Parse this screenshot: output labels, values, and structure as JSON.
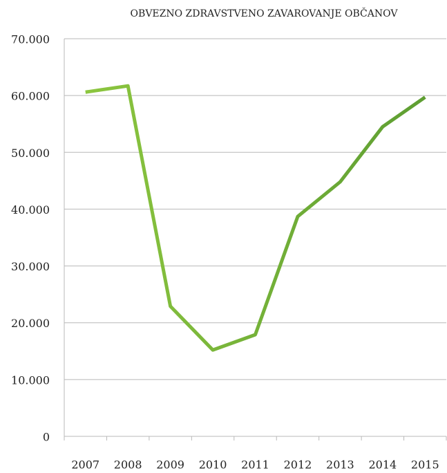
{
  "chart_data": {
    "type": "line",
    "title": "OBVEZNO ZDRAVSTVENO ZAVAROVANJE OBČANOV",
    "categories": [
      "2007",
      "2008",
      "2009",
      "2010",
      "2011",
      "2012",
      "2013",
      "2014",
      "2015"
    ],
    "series": [
      {
        "color": [
          "#8cc63f",
          "#5e9e32"
        ],
        "values": [
          60600,
          61700,
          22900,
          15200,
          17900,
          38700,
          44800,
          54500,
          59700
        ]
      }
    ],
    "ylim": [
      0,
      70000
    ],
    "yticks": [
      0,
      {
        "value": 10000,
        "label": "10.000"
      },
      {
        "value": 20000,
        "label": "20.000"
      },
      {
        "value": 30000,
        "label": "30.000"
      },
      {
        "value": 40000,
        "label": "40.000"
      },
      {
        "value": 50000,
        "label": "50.000"
      },
      {
        "value": 60000,
        "label": "60.000"
      },
      {
        "value": 70000,
        "label": "70.000"
      }
    ],
    "grid": true
  }
}
